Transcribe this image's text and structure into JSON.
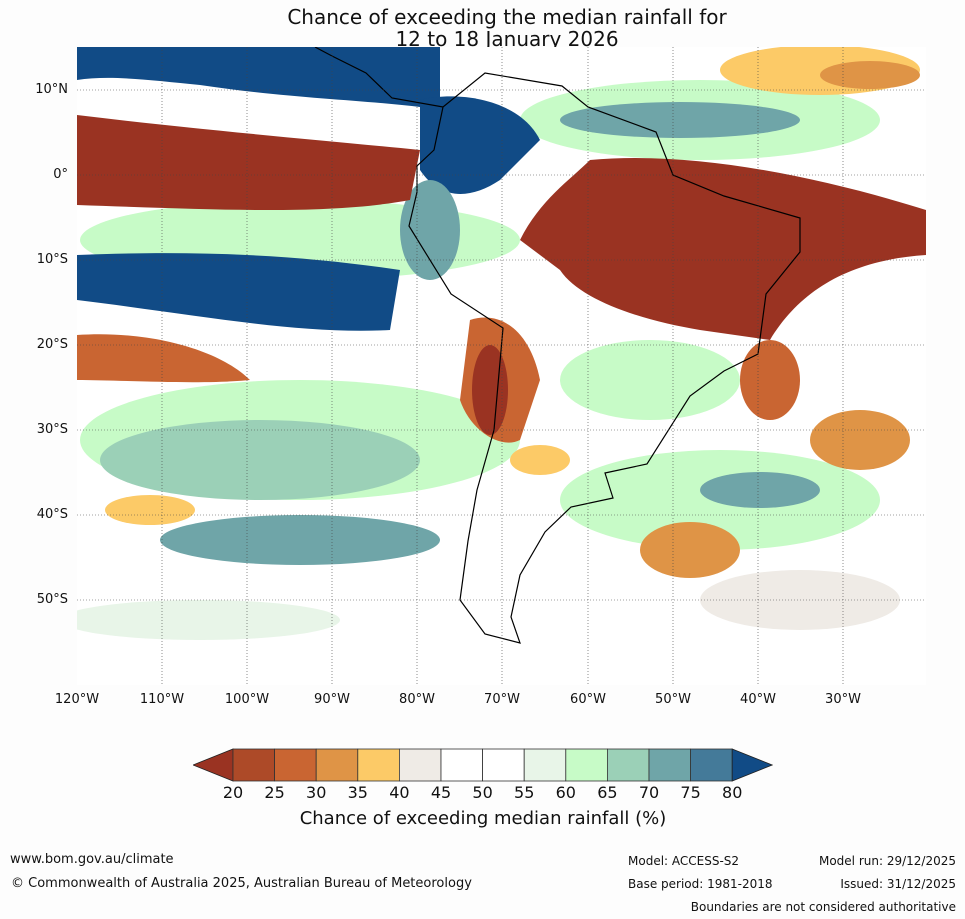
{
  "title": {
    "line1": "Chance of exceeding the median rainfall for",
    "line2": "12 to 18 January 2026"
  },
  "axes": {
    "lat_labels": [
      "10°N",
      "0°",
      "10°S",
      "20°S",
      "30°S",
      "40°S",
      "50°S"
    ],
    "lon_labels": [
      "120°W",
      "110°W",
      "100°W",
      "90°W",
      "80°W",
      "70°W",
      "60°W",
      "50°W",
      "40°W",
      "30°W"
    ]
  },
  "colorbar": {
    "ticks": [
      "20",
      "25",
      "30",
      "35",
      "40",
      "45",
      "50",
      "55",
      "60",
      "65",
      "70",
      "75",
      "80"
    ],
    "colors": [
      "#9a3322",
      "#ad4a28",
      "#c96532",
      "#df9446",
      "#fcca67",
      "#efebe6",
      "#ffffff",
      "#ffffff",
      "#e8f5e8",
      "#c7fbc7",
      "#9bd0b7",
      "#6fa5a8",
      "#447a99",
      "#114b86"
    ],
    "label": "Chance of exceeding median rainfall (%)"
  },
  "footer": {
    "website": "www.bom.gov.au/climate",
    "copyright": "© Commonwealth of Australia 2025, Australian Bureau of Meteorology",
    "model": "Model: ACCESS-S2",
    "base_period": "Base period: 1981-2018",
    "model_run": "Model run: 29/12/2025",
    "issued": "Issued: 31/12/2025",
    "disclaimer": "Boundaries are not considered authoritative"
  }
}
